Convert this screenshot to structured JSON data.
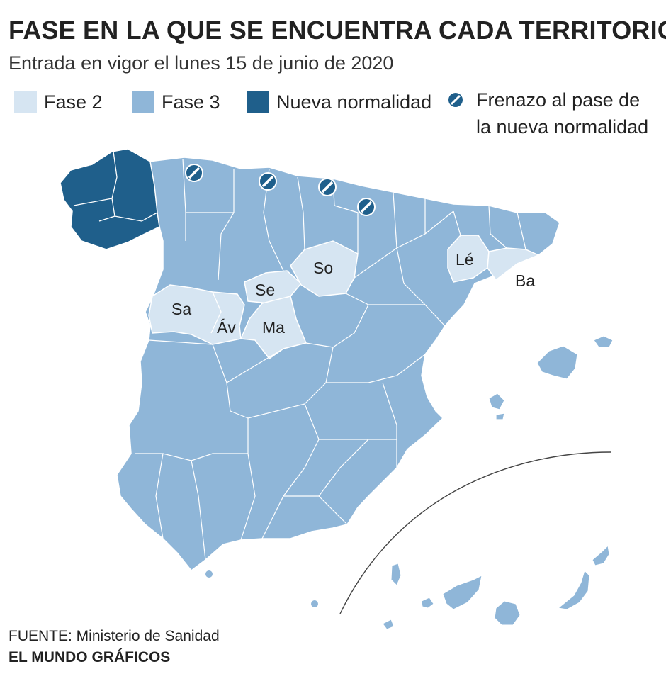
{
  "title": "FASE EN LA QUE SE ENCUENTRA CADA TERRITORIO",
  "subtitle": "Entrada en vigor el lunes 15 de junio de 2020",
  "colors": {
    "fase2": "#d6e5f2",
    "fase3": "#8fb6d8",
    "nueva_normalidad": "#1f5f8b",
    "border": "#ffffff"
  },
  "legend": {
    "fase2": "Fase 2",
    "fase3": "Fase 3",
    "nueva_normalidad": "Nueva normalidad",
    "frenazo_line1": "Frenazo al pase de",
    "frenazo_line2": "la nueva normalidad"
  },
  "map": {
    "labels": {
      "salamanca": "Sa",
      "avila": "Áv",
      "segovia": "Se",
      "madrid": "Ma",
      "soria": "So",
      "lleida": "Lé",
      "barcelona": "Ba"
    },
    "icons": [
      "frenazo-icon",
      "frenazo-icon",
      "frenazo-icon",
      "frenazo-icon"
    ]
  },
  "footer": {
    "source": "FUENTE: Ministerio de Sanidad",
    "credit": "EL MUNDO GRÁFICOS"
  }
}
